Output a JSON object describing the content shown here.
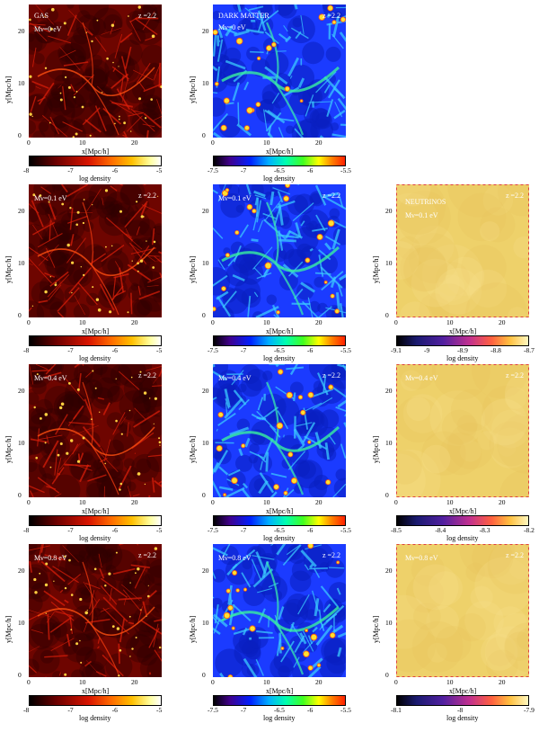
{
  "axis": {
    "xlabel": "x[Mpc/h]",
    "ylabel": "y[Mpc/h]",
    "ticks": [
      "0",
      "10",
      "20"
    ]
  },
  "redshift": "z =2.2",
  "rows": [
    {
      "gas_label": "GAS",
      "dm_label": "DARK MATTER",
      "mass": "Mν=0 eV",
      "nu": null
    },
    {
      "gas_label": "",
      "dm_label": "",
      "mass": "Mν=0.1 eV",
      "nu": {
        "label": "NEUTRINOS",
        "mass": "Mν=0.1 eV",
        "cbar_ticks": [
          "-9.1",
          "-9",
          "-8.9",
          "-8.8",
          "-8.7"
        ]
      }
    },
    {
      "gas_label": "",
      "dm_label": "",
      "mass": "Mν=0.4 eV",
      "nu": {
        "label": "",
        "mass": "Mν=0.4 eV",
        "cbar_ticks": [
          "-8.5",
          "-8.4",
          "-8.3",
          "-8.2"
        ]
      }
    },
    {
      "gas_label": "",
      "dm_label": "",
      "mass": "Mν=0.8 eV",
      "nu": {
        "label": "",
        "mass": "Mν=0.8 eV",
        "cbar_ticks": [
          "-8.1",
          "-8",
          "-7.9"
        ]
      }
    }
  ],
  "gas_cbar_ticks": [
    "-8",
    "-7",
    "-6",
    "-5"
  ],
  "dm_cbar_ticks": [
    "-7.5",
    "-7",
    "-6.5",
    "-6",
    "-5.5"
  ],
  "cbar_label": "log density",
  "colors": {
    "gas_bg": "#8a0a00",
    "dm_bg": "#1a3cff",
    "nu_bg": "#f0d36a"
  }
}
